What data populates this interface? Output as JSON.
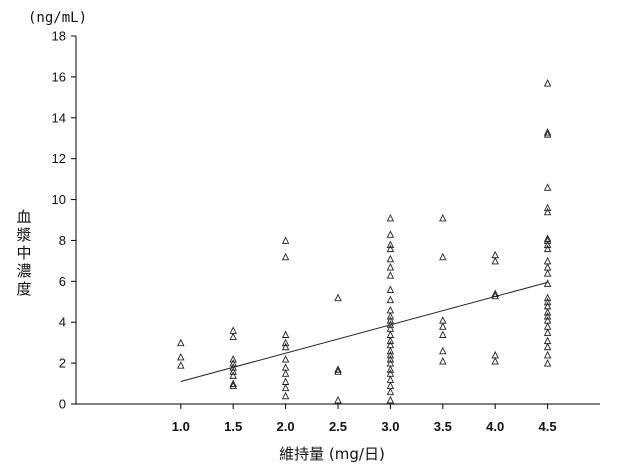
{
  "chart_data": {
    "type": "scatter",
    "unit_label": "(ng/mL)",
    "ylabel": "血漿中濃度",
    "xlabel": "維持量 (mg/日)",
    "xlim": [
      0.0,
      5.0
    ],
    "ylim": [
      0,
      18
    ],
    "x_ticks": [
      "1.0",
      "1.5",
      "2.0",
      "2.5",
      "3.0",
      "3.5",
      "4.0",
      "4.5"
    ],
    "y_ticks": [
      "0",
      "2",
      "4",
      "6",
      "8",
      "10",
      "12",
      "14",
      "16",
      "18"
    ],
    "grid": false,
    "marker": "triangle",
    "series": [
      {
        "points": [
          [
            1.0,
            3.0
          ],
          [
            1.0,
            2.3
          ],
          [
            1.0,
            1.9
          ],
          [
            1.5,
            3.6
          ],
          [
            1.5,
            3.3
          ],
          [
            1.5,
            2.2
          ],
          [
            1.5,
            2.0
          ],
          [
            1.5,
            1.8
          ],
          [
            1.5,
            1.6
          ],
          [
            1.5,
            1.4
          ],
          [
            1.5,
            1.0
          ],
          [
            1.5,
            0.9
          ],
          [
            2.0,
            8.0
          ],
          [
            2.0,
            7.2
          ],
          [
            2.0,
            3.4
          ],
          [
            2.0,
            3.0
          ],
          [
            2.0,
            2.8
          ],
          [
            2.0,
            2.2
          ],
          [
            2.0,
            1.8
          ],
          [
            2.0,
            1.5
          ],
          [
            2.0,
            1.1
          ],
          [
            2.0,
            0.8
          ],
          [
            2.0,
            0.4
          ],
          [
            2.5,
            5.2
          ],
          [
            2.5,
            1.7
          ],
          [
            2.5,
            1.6
          ],
          [
            2.5,
            0.2
          ],
          [
            3.0,
            9.1
          ],
          [
            3.0,
            8.3
          ],
          [
            3.0,
            7.8
          ],
          [
            3.0,
            7.6
          ],
          [
            3.0,
            7.1
          ],
          [
            3.0,
            6.7
          ],
          [
            3.0,
            6.3
          ],
          [
            3.0,
            5.6
          ],
          [
            3.0,
            5.1
          ],
          [
            3.0,
            4.6
          ],
          [
            3.0,
            4.3
          ],
          [
            3.0,
            4.1
          ],
          [
            3.0,
            3.9
          ],
          [
            3.0,
            3.7
          ],
          [
            3.0,
            3.4
          ],
          [
            3.0,
            3.1
          ],
          [
            3.0,
            2.9
          ],
          [
            3.0,
            2.6
          ],
          [
            3.0,
            2.4
          ],
          [
            3.0,
            2.2
          ],
          [
            3.0,
            2.0
          ],
          [
            3.0,
            1.7
          ],
          [
            3.0,
            1.5
          ],
          [
            3.0,
            1.2
          ],
          [
            3.0,
            0.9
          ],
          [
            3.0,
            0.6
          ],
          [
            3.0,
            0.2
          ],
          [
            3.5,
            9.1
          ],
          [
            3.5,
            7.2
          ],
          [
            3.5,
            4.1
          ],
          [
            3.5,
            3.8
          ],
          [
            3.5,
            3.4
          ],
          [
            3.5,
            2.6
          ],
          [
            3.5,
            2.1
          ],
          [
            4.0,
            7.3
          ],
          [
            4.0,
            7.0
          ],
          [
            4.0,
            5.4
          ],
          [
            4.0,
            5.3
          ],
          [
            4.0,
            2.4
          ],
          [
            4.0,
            2.1
          ],
          [
            4.5,
            15.7
          ],
          [
            4.5,
            13.3
          ],
          [
            4.5,
            13.2
          ],
          [
            4.5,
            10.6
          ],
          [
            4.5,
            9.6
          ],
          [
            4.5,
            9.4
          ],
          [
            4.5,
            8.1
          ],
          [
            4.5,
            8.0
          ],
          [
            4.5,
            7.8
          ],
          [
            4.5,
            7.6
          ],
          [
            4.5,
            7.0
          ],
          [
            4.5,
            6.7
          ],
          [
            4.5,
            6.4
          ],
          [
            4.5,
            5.9
          ],
          [
            4.5,
            5.2
          ],
          [
            4.5,
            5.0
          ],
          [
            4.5,
            4.8
          ],
          [
            4.5,
            4.5
          ],
          [
            4.5,
            4.3
          ],
          [
            4.5,
            4.1
          ],
          [
            4.5,
            3.8
          ],
          [
            4.5,
            3.5
          ],
          [
            4.5,
            3.1
          ],
          [
            4.5,
            2.8
          ],
          [
            4.5,
            2.4
          ],
          [
            4.5,
            2.0
          ]
        ]
      }
    ],
    "trendline": {
      "x": [
        1.0,
        4.5
      ],
      "y": [
        1.1,
        5.95
      ]
    }
  }
}
